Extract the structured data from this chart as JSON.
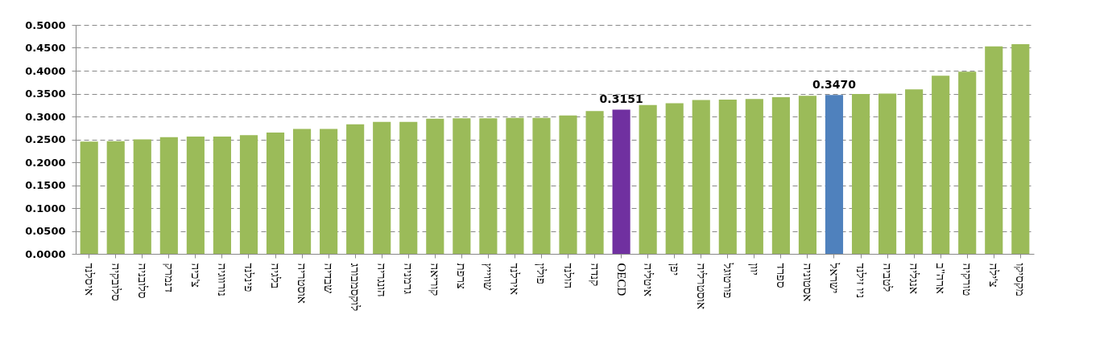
{
  "chart_data": {
    "type": "bar",
    "categories": [
      "איסלנד",
      "סלובקיה",
      "סלובניה",
      "דנמרק",
      "צ'כיה",
      "נורווגיה",
      "פינלנד",
      "בלגיה",
      "אוסטריה",
      "שבדיה",
      "לוקסמבורג",
      "הונגריה",
      "גרמניה",
      "קוריאה",
      "צרפת",
      "שווייץ",
      "אירלנד",
      "פולין",
      "הולנד",
      "קנדה",
      "OECD",
      "איטליה",
      "יפן",
      "אוסטרליה",
      "פורטוגל",
      "יוון",
      "ספרד",
      "אסטוניה",
      "ישראל",
      "ניו זילנד",
      "לטביה",
      "אנגליה",
      "ארה\"ב",
      "טורקיה",
      "צ'ילה",
      "מקסיקו"
    ],
    "values": [
      0.245,
      0.246,
      0.25,
      0.255,
      0.256,
      0.256,
      0.259,
      0.265,
      0.273,
      0.273,
      0.283,
      0.288,
      0.288,
      0.295,
      0.296,
      0.296,
      0.297,
      0.297,
      0.302,
      0.312,
      0.3151,
      0.325,
      0.329,
      0.336,
      0.337,
      0.338,
      0.342,
      0.345,
      0.347,
      0.349,
      0.35,
      0.359,
      0.389,
      0.398,
      0.453,
      0.458
    ],
    "colors": [
      "#9bbb59",
      "#9bbb59",
      "#9bbb59",
      "#9bbb59",
      "#9bbb59",
      "#9bbb59",
      "#9bbb59",
      "#9bbb59",
      "#9bbb59",
      "#9bbb59",
      "#9bbb59",
      "#9bbb59",
      "#9bbb59",
      "#9bbb59",
      "#9bbb59",
      "#9bbb59",
      "#9bbb59",
      "#9bbb59",
      "#9bbb59",
      "#9bbb59",
      "#7030a0",
      "#9bbb59",
      "#9bbb59",
      "#9bbb59",
      "#9bbb59",
      "#9bbb59",
      "#9bbb59",
      "#9bbb59",
      "#4f81bd",
      "#9bbb59",
      "#9bbb59",
      "#9bbb59",
      "#9bbb59",
      "#9bbb59",
      "#9bbb59",
      "#9bbb59"
    ],
    "value_labels": [
      null,
      null,
      null,
      null,
      null,
      null,
      null,
      null,
      null,
      null,
      null,
      null,
      null,
      null,
      null,
      null,
      null,
      null,
      null,
      null,
      "0.3151",
      null,
      null,
      null,
      null,
      null,
      null,
      null,
      "0.3470",
      null,
      null,
      null,
      null,
      null,
      null,
      null
    ],
    "ylim": [
      0,
      0.5
    ],
    "yticks": [
      {
        "value": 0,
        "label": "0.0000"
      },
      {
        "value": 0.05,
        "label": "0.0500"
      },
      {
        "value": 0.1,
        "label": "0.1000"
      },
      {
        "value": 0.15,
        "label": "0.1500"
      },
      {
        "value": 0.2,
        "label": "0.2000"
      },
      {
        "value": 0.25,
        "label": "0.2500"
      },
      {
        "value": 0.3,
        "label": "0.3000"
      },
      {
        "value": 0.35,
        "label": "0.3500"
      },
      {
        "value": 0.4,
        "label": "0.4000"
      },
      {
        "value": 0.45,
        "label": "0.4500"
      },
      {
        "value": 0.5,
        "label": "0.5000"
      }
    ],
    "grid": "y"
  }
}
